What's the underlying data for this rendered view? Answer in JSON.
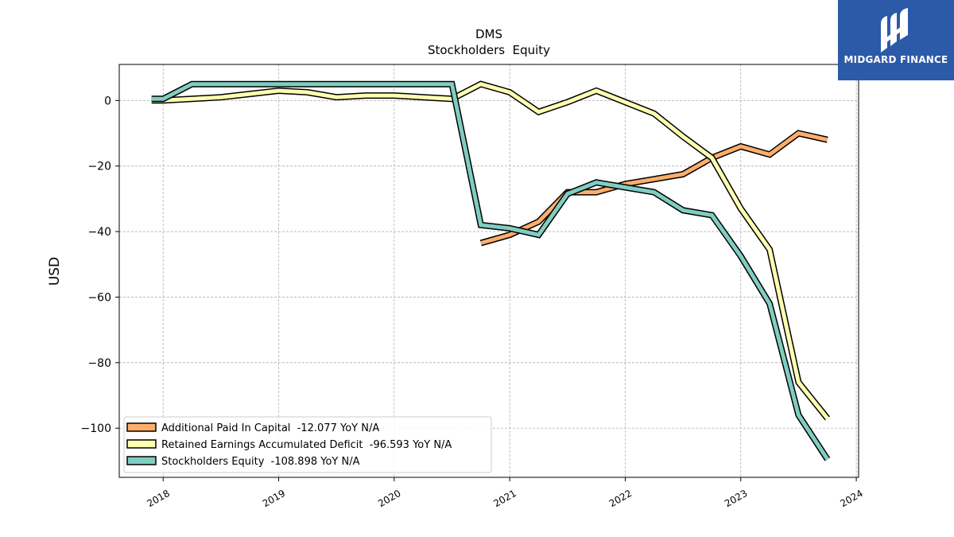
{
  "logo": {
    "text": "MIDGARD FINANCE",
    "background": "#2b5aa8"
  },
  "chart_data": {
    "type": "line",
    "title": "DMS",
    "subtitle": "Stockholders  Equity",
    "ylabel": "USD",
    "xlabel": "",
    "ylim": [
      -115,
      11
    ],
    "xlim": [
      2017.62,
      2024.02
    ],
    "yticks": [
      0,
      -20,
      -40,
      -60,
      -80,
      -100
    ],
    "ytick_labels": [
      "0",
      "−20",
      "−40",
      "−60",
      "−80",
      "−100"
    ],
    "xticks": [
      2018,
      2019,
      2020,
      2021,
      2022,
      2023,
      2024
    ],
    "xtick_labels": [
      "2018",
      "2019",
      "2020",
      "2021",
      "2022",
      "2023",
      "2024"
    ],
    "grid": true,
    "legend_position": "lower-left",
    "series": [
      {
        "name": "Additional Paid In Capital  -12.077 YoY N/A",
        "color": "#fdae6b",
        "x": [
          2020.75,
          2021.0,
          2021.25,
          2021.5,
          2021.75,
          2022.0,
          2022.25,
          2022.5,
          2022.75,
          2023.0,
          2023.25,
          2023.5,
          2023.75
        ],
        "y": [
          -43.5,
          -41.0,
          -37.0,
          -28.0,
          -28.0,
          -25.5,
          -24.0,
          -22.5,
          -17.5,
          -14.0,
          -16.5,
          -10.0,
          -12.0
        ]
      },
      {
        "name": "Retained Earnings Accumulated Deficit  -96.593 YoY N/A",
        "color": "#ffffb2",
        "x": [
          2017.9,
          2018.0,
          2018.25,
          2018.5,
          2018.75,
          2019.0,
          2019.25,
          2019.5,
          2019.75,
          2020.0,
          2020.25,
          2020.5,
          2020.75,
          2021.0,
          2021.25,
          2021.5,
          2021.75,
          2022.0,
          2022.25,
          2022.5,
          2022.75,
          2023.0,
          2023.25,
          2023.5,
          2023.75
        ],
        "y": [
          0.0,
          0.0,
          0.5,
          1.0,
          2.0,
          3.0,
          2.5,
          1.0,
          1.5,
          1.5,
          1.0,
          0.5,
          5.0,
          2.5,
          -3.5,
          -0.5,
          3.0,
          -0.5,
          -4.0,
          -11.0,
          -17.5,
          -33.0,
          -45.5,
          -86.0,
          -97.0
        ]
      },
      {
        "name": "Stockholders Equity  -108.898 YoY N/A",
        "color": "#80cdc1",
        "x": [
          2017.9,
          2018.0,
          2018.25,
          2018.5,
          2018.75,
          2019.0,
          2019.25,
          2019.5,
          2019.75,
          2020.0,
          2020.25,
          2020.5,
          2020.75,
          2021.0,
          2021.25,
          2021.5,
          2021.75,
          2022.0,
          2022.25,
          2022.5,
          2022.75,
          2023.0,
          2023.25,
          2023.5,
          2023.75
        ],
        "y": [
          0.5,
          0.5,
          5.0,
          5.0,
          5.0,
          5.0,
          5.0,
          5.0,
          5.0,
          5.0,
          5.0,
          5.0,
          -38.0,
          -39.0,
          -41.0,
          -28.5,
          -25.0,
          -26.5,
          -28.0,
          -33.5,
          -35.0,
          -47.5,
          -62.0,
          -96.0,
          -109.5
        ]
      }
    ]
  }
}
